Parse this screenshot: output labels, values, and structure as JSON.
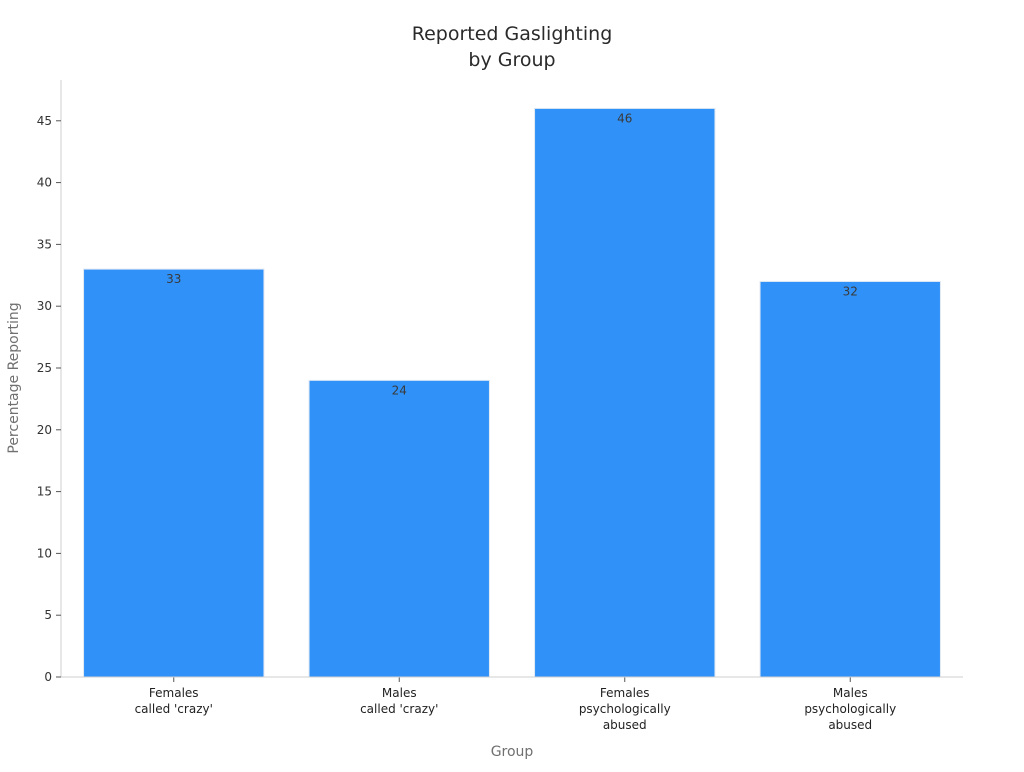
{
  "chart_data": {
    "type": "bar",
    "title": [
      "Reported Gaslighting",
      "by Group"
    ],
    "xlabel": "Group",
    "ylabel": "Percentage Reporting",
    "categories": [
      [
        "Females",
        "called 'crazy'"
      ],
      [
        "Males",
        "called 'crazy'"
      ],
      [
        "Females",
        "psychologically",
        "abused"
      ],
      [
        "Males",
        "psychologically",
        "abused"
      ]
    ],
    "values": [
      33,
      24,
      46,
      32
    ],
    "data_labels": [
      "33",
      "24",
      "46",
      "32"
    ],
    "yticks": [
      0,
      5,
      10,
      15,
      20,
      25,
      30,
      35,
      40,
      45
    ],
    "ylim": [
      0,
      48.3
    ],
    "grid": false,
    "legend": "none",
    "bar_color": "#3092f9"
  }
}
